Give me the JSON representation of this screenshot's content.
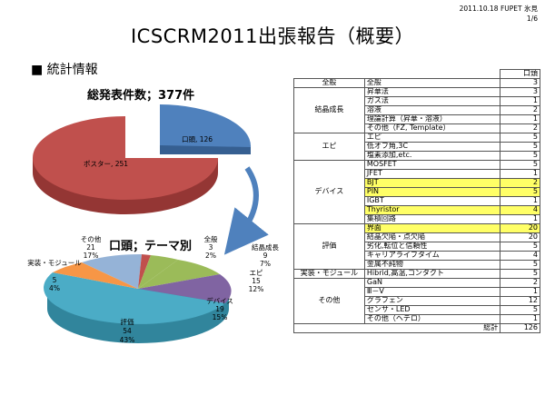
{
  "header": {
    "date_author": "2011.10.18 FUPET 氷見",
    "page": "1/6"
  },
  "title": "ICSCRM2011出張報告（概要）",
  "section_heading": "■ 統計情報",
  "total_label": "総発表件数；377件",
  "chart_data": [
    {
      "type": "pie",
      "title": "総発表件数；377件",
      "categories": [
        "口頭",
        "ポスター"
      ],
      "values": [
        126,
        251
      ],
      "colors": [
        "#4f81bd",
        "#c0504d"
      ],
      "labels": [
        "口頭, 126",
        "ポスター, 251"
      ]
    },
    {
      "type": "pie",
      "title": "口頭；テーマ別",
      "categories": [
        "全般",
        "結晶成長",
        "エピ",
        "デバイス",
        "評価",
        "実装・モジュール",
        "その他"
      ],
      "values": [
        3,
        9,
        15,
        19,
        54,
        5,
        21
      ],
      "percents": [
        "2%",
        "7%",
        "12%",
        "15%",
        "43%",
        "4%",
        "17%"
      ],
      "colors": [
        "#c0504d",
        "#9bbb59",
        "#9bbb59",
        "#8064a2",
        "#4bacc6",
        "#f79646",
        "#95b3d7"
      ]
    },
    {
      "type": "table",
      "header": "口頭",
      "rows": [
        {
          "cat": "全般",
          "span": 1,
          "items": [
            {
              "label": "全般",
              "value": "3"
            }
          ]
        },
        {
          "cat": "結晶成長",
          "span": 5,
          "items": [
            {
              "label": "昇華法",
              "value": "3"
            },
            {
              "label": "ガス法",
              "value": "1"
            },
            {
              "label": "溶液",
              "value": "2"
            },
            {
              "label": "理論計算（昇華・溶液）",
              "value": "1"
            },
            {
              "label": "その他（FZ, Template）",
              "value": "2"
            }
          ]
        },
        {
          "cat": "エピ",
          "span": 3,
          "items": [
            {
              "label": "エピ",
              "value": "5"
            },
            {
              "label": "低オフ角,3C",
              "value": "5"
            },
            {
              "label": "塩素添加,etc.",
              "value": "5"
            }
          ]
        },
        {
          "cat": "デバイス",
          "span": 8,
          "items": [
            {
              "label": "MOSFET",
              "value": "5"
            },
            {
              "label": "JFET",
              "value": "1"
            },
            {
              "label": "BJT",
              "value": "2",
              "hl": true
            },
            {
              "label": "PIN",
              "value": "5",
              "hl": true
            },
            {
              "label": "IGBT",
              "value": "1"
            },
            {
              "label": "Thyristor",
              "value": "4",
              "hl": true
            },
            {
              "label": "集積回路",
              "value": "1"
            }
          ]
        },
        {
          "cat": "評価",
          "span": 5,
          "items": [
            {
              "label": "界面",
              "value": "20",
              "hl": true
            },
            {
              "label": "結晶欠陥・点欠陥",
              "value": "20"
            },
            {
              "label": "劣化,転位と信頼性",
              "value": "5"
            },
            {
              "label": "キャリアライフタイム",
              "value": "4"
            },
            {
              "label": "金属不純物",
              "value": "5"
            }
          ]
        },
        {
          "cat": "実装・モジュール",
          "span": 1,
          "items": [
            {
              "label": "Hibrid,高温,コンタクト",
              "value": "5"
            }
          ]
        },
        {
          "cat": "その他",
          "span": 5,
          "items": [
            {
              "label": "GaN",
              "value": "2"
            },
            {
              "label": "Ⅲ－Ⅴ",
              "value": "1"
            },
            {
              "label": "グラフェン",
              "value": "12"
            },
            {
              "label": "センサ・LED",
              "value": "5"
            },
            {
              "label": "その他（ヘテロ）",
              "value": "1"
            }
          ]
        }
      ],
      "total_label": "総計",
      "total_value": "126"
    }
  ],
  "pie1_labels": {
    "oral": "口頭, 126",
    "poster": "ポスター, 251"
  },
  "pie2_title": "口頭；テーマ別",
  "pie2_labels": [
    {
      "name": "全般",
      "value": "3",
      "pct": "2%"
    },
    {
      "name": "結晶成長",
      "value": "9",
      "pct": "7%"
    },
    {
      "name": "エピ",
      "value": "15",
      "pct": "12%"
    },
    {
      "name": "デバイス",
      "value": "19",
      "pct": "15%"
    },
    {
      "name": "評価",
      "value": "54",
      "pct": "43%"
    },
    {
      "name": "実装・モジュール",
      "value": "5",
      "pct": "4%"
    },
    {
      "name": "その他",
      "value": "21",
      "pct": "17%"
    }
  ]
}
